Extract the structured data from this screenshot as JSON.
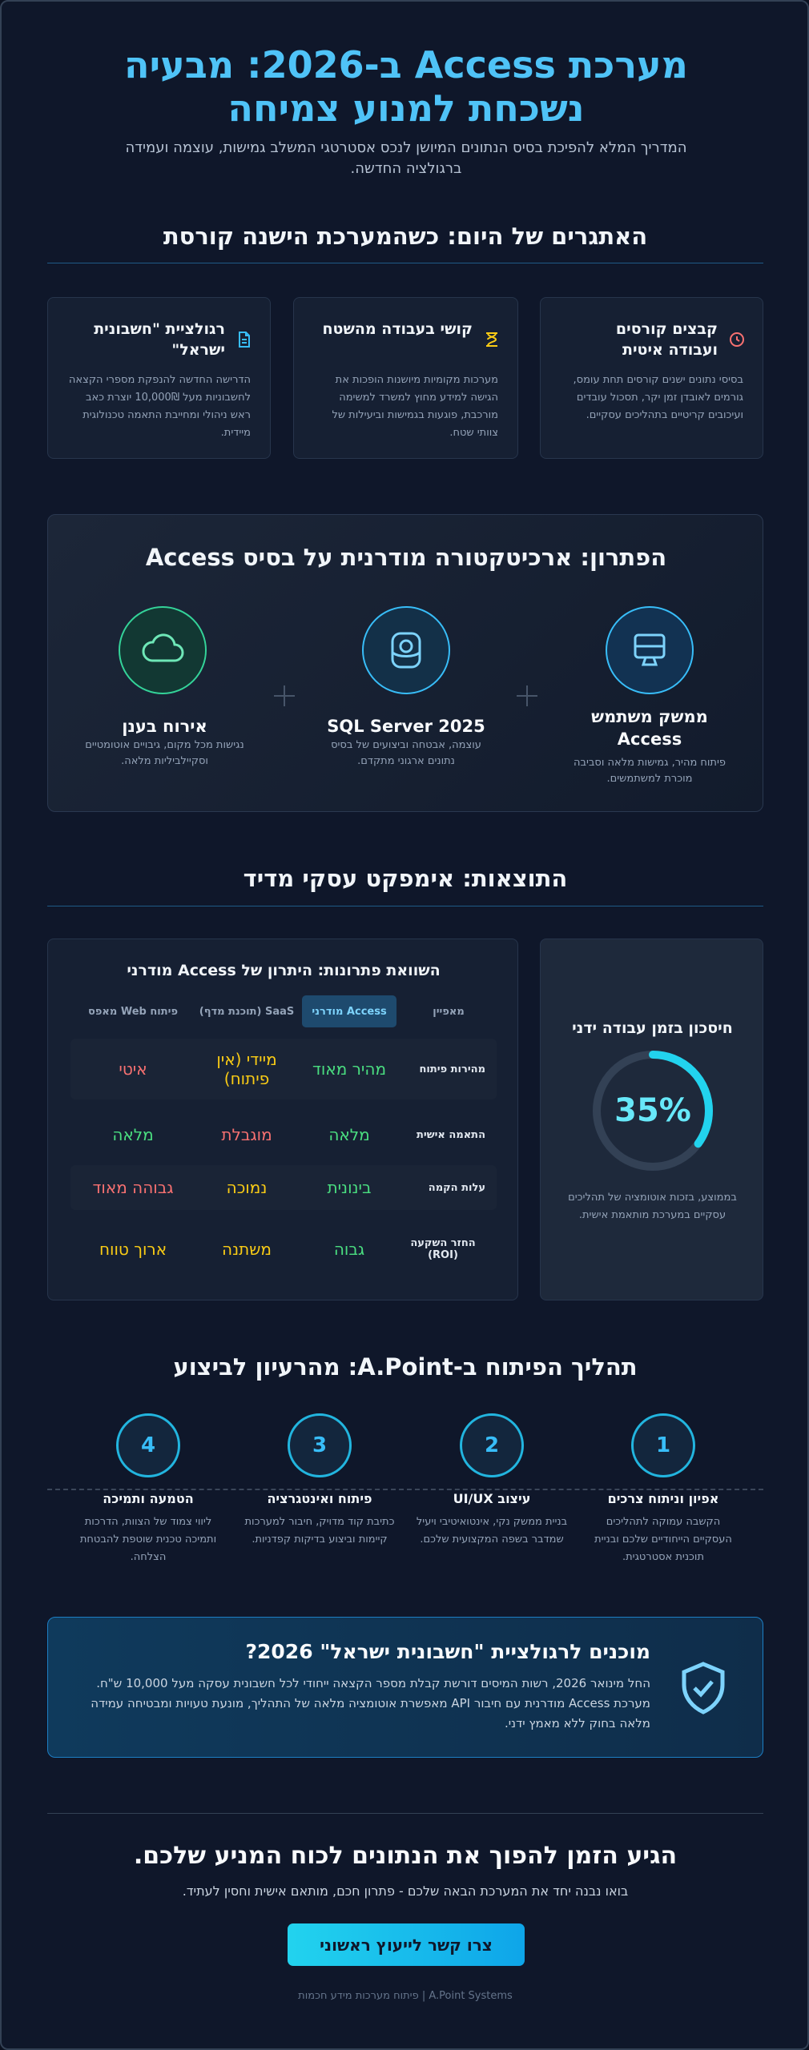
{
  "header": {
    "title": "מערכת Access ב-2026: מבעיה נשכחת למנוע צמיחה",
    "subtitle": "המדריך המלא להפיכת בסיס הנתונים המיושן לנכס אסטרטגי המשלב גמישות, עוצמה ועמידה ברגולציה החדשה."
  },
  "challenges": {
    "heading": "האתגרים של היום: כשהמערכת הישנה קורסת",
    "cards": [
      {
        "title": "קבצים קורסים ועבודה איטית",
        "text": "בסיסי נתונים ישנים קורסים תחת עומס, גורמים לאובדן זמן יקר, תסכול עובדים ועיכובים קריטיים בתהליכים עסקיים."
      },
      {
        "title": "קושי בעבודה מהשטח",
        "text": "מערכות מקומיות מיושנות הופכות את הגישה למידע מחוץ למשרד למשימה מורכבת, פוגעות בגמישות וביעילות של צוותי שטח."
      },
      {
        "title": "רגולציית \"חשבונית ישראל\"",
        "text": "הדרישה החדשה להנפקת מספרי הקצאה לחשבוניות מעל 10,000₪ יוצרת כאב ראש ניהולי ומחייבת התאמה טכנולוגית מיידית."
      }
    ]
  },
  "solution": {
    "heading": "הפתרון: ארכיטקטורה מודרנית על בסיס Access",
    "items": [
      {
        "title": "ממשק משתמש Access",
        "text": "פיתוח מהיר, גמישות מלאה וסביבה מוכרת למשתמשים."
      },
      {
        "title": "SQL Server 2025",
        "text": "עוצמה, אבטחה וביצועים של בסיס נתונים ארגוני מתקדם."
      },
      {
        "title": "אירוח בענן",
        "text": "נגישות מכל מקום, גיבויים אוטומטיים וסקיילביליות מלאה."
      }
    ]
  },
  "results": {
    "heading": "התוצאות: אימפקט עסקי מדיד",
    "comparison": {
      "title": "השוואת פתרונות: היתרון של Access מודרני",
      "columns": [
        "מאפיין",
        "Access מודרני",
        "SaaS (תוכנת מדף)",
        "פיתוח Web מאפס"
      ],
      "rows": [
        [
          "מהירות פיתוח",
          "מהיר מאוד",
          "מיידי (אין פיתוח)",
          "איטי"
        ],
        [
          "התאמה אישית",
          "מלאה",
          "מוגבלת",
          "מלאה"
        ],
        [
          "עלות הקמה",
          "בינונית",
          "נמוכה",
          "גבוהה מאוד"
        ],
        [
          "החזר השקעה (ROI)",
          "גבוה",
          "משתנה",
          "ארוך טווח"
        ]
      ],
      "colors": [
        [
          "#e2e8f0",
          "#4ade80",
          "#facc15",
          "#f87171"
        ],
        [
          "#e2e8f0",
          "#4ade80",
          "#f87171",
          "#4ade80"
        ],
        [
          "#e2e8f0",
          "#4ade80",
          "#facc15",
          "#f87171"
        ],
        [
          "#e2e8f0",
          "#4ade80",
          "#facc15",
          "#facc15"
        ]
      ]
    },
    "stat": {
      "title": "חיסכון בזמן עבודה ידני",
      "value": 35,
      "value_label": "35%",
      "text": "בממוצע, בזכות אוטומציה של תהליכים עסקיים במערכת מותאמת אישית."
    }
  },
  "process": {
    "heading": "תהליך הפיתוח ב-A.Point: מהרעיון לביצוע",
    "steps": [
      {
        "number": "1",
        "title": "אפיון וניתוח צרכים",
        "text": "הקשבה עמוקה לתהליכים העסקיים הייחודיים שלכם ובניית תוכנית אסטרטגית."
      },
      {
        "number": "2",
        "title": "עיצוב UI/UX",
        "text": "בניית ממשק נקי, אינטואיטיבי ויעיל שמדבר בשפה המקצועית שלכם."
      },
      {
        "number": "3",
        "title": "פיתוח ואינטגרציה",
        "text": "כתיבת קוד מדויק, חיבור למערכות קיימות וביצוע בדיקות קפדניות."
      },
      {
        "number": "4",
        "title": "הטמעה ותמיכה",
        "text": "ליווי צמוד של הצוות, הדרכות ותמיכה טכנית שוטפת להבטחת הצלחה."
      }
    ]
  },
  "cta_box": {
    "title": "מוכנים לרגולציית \"חשבונית ישראל\" 2026?",
    "text": "החל מינואר 2026, רשות המיסים דורשת קבלת מספר הקצאה ייחודי לכל חשבונית עסקה מעל 10,000 ש\"ח. מערכת Access מודרנית עם חיבור API מאפשרת אוטומציה מלאה של התהליך, מונעת טעויות ומבטיחה עמידה מלאה בחוק ללא מאמץ ידני."
  },
  "closing": {
    "title": "הגיע הזמן להפוך את הנתונים לכוח המניע שלכם.",
    "text": "בואו נבנה יחד את המערכת הבאה שלכם - פתרון חכם, מותאם אישית וחסין לעתיד.",
    "button": "צרו קשר לייעוץ ראשוני",
    "footer": "A.Point Systems | פיתוח מערכות מידע חכמות"
  }
}
